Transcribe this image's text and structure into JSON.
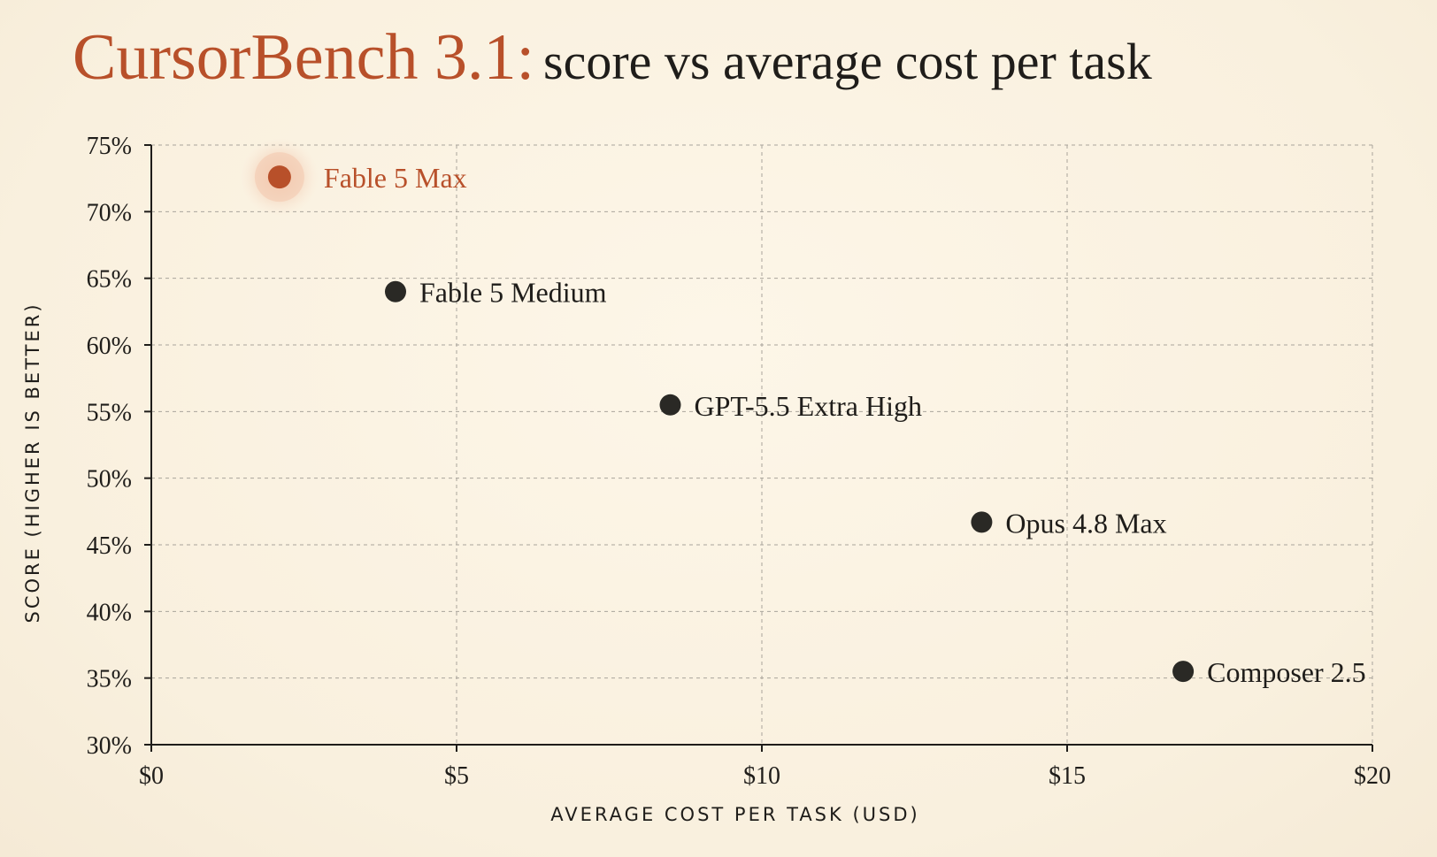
{
  "title": {
    "brand": "CursorBench 3.1:",
    "rest": "score vs average cost per task"
  },
  "colors": {
    "highlight": "#b8502a",
    "point": "#2a2925",
    "background": "#fbf3e3"
  },
  "chart_data": {
    "type": "scatter",
    "xlabel": "AVERAGE COST PER TASK (USD)",
    "ylabel": "SCORE (HIGHER IS BETTER)",
    "xlim": [
      0,
      20
    ],
    "ylim": [
      30,
      75
    ],
    "x_ticks": [
      0,
      5,
      10,
      15,
      20
    ],
    "x_tick_labels": [
      "$0",
      "$5",
      "$10",
      "$15",
      "$20"
    ],
    "y_ticks": [
      30,
      35,
      40,
      45,
      50,
      55,
      60,
      65,
      70,
      75
    ],
    "y_tick_labels": [
      "30%",
      "35%",
      "40%",
      "45%",
      "50%",
      "55%",
      "60%",
      "65%",
      "70%",
      "75%"
    ],
    "grid": true,
    "points": [
      {
        "label": "Fable 5 Max",
        "x": 2.1,
        "y": 72.6,
        "highlight": true
      },
      {
        "label": "Fable 5 Medium",
        "x": 4.0,
        "y": 64.0,
        "highlight": false
      },
      {
        "label": "GPT-5.5 Extra High",
        "x": 8.5,
        "y": 55.5,
        "highlight": false
      },
      {
        "label": "Opus 4.8 Max",
        "x": 13.6,
        "y": 46.7,
        "highlight": false
      },
      {
        "label": "Composer 2.5",
        "x": 16.9,
        "y": 35.5,
        "highlight": false
      }
    ]
  }
}
